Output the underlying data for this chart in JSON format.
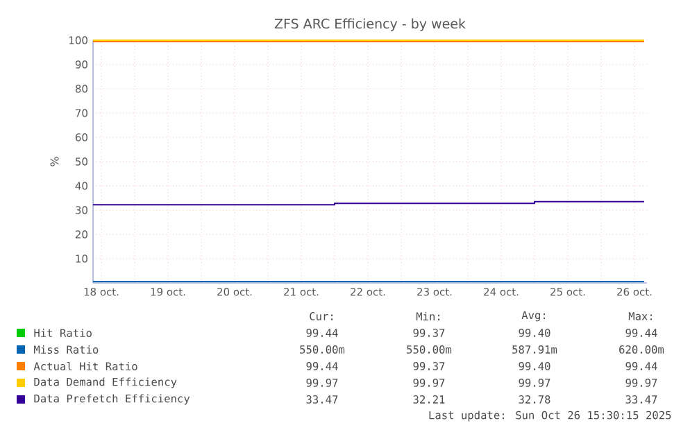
{
  "chart_data": {
    "type": "step",
    "title": "ZFS ARC Efficiency - by week",
    "ylabel": "%",
    "xlim": [
      "2025-10-18T09:00",
      "2025-10-26T16:30"
    ],
    "xticks": [
      {
        "value": "2025-10-18T12:00",
        "label": "18 oct."
      },
      {
        "value": "2025-10-19T00:00",
        "label": null
      },
      {
        "value": "2025-10-19T12:00",
        "label": "19 oct."
      },
      {
        "value": "2025-10-20T00:00",
        "label": null
      },
      {
        "value": "2025-10-20T12:00",
        "label": "20 oct."
      },
      {
        "value": "2025-10-21T00:00",
        "label": null
      },
      {
        "value": "2025-10-21T12:00",
        "label": "21 oct."
      },
      {
        "value": "2025-10-22T00:00",
        "label": null
      },
      {
        "value": "2025-10-22T12:00",
        "label": "22 oct."
      },
      {
        "value": "2025-10-23T00:00",
        "label": null
      },
      {
        "value": "2025-10-23T12:00",
        "label": "23 oct."
      },
      {
        "value": "2025-10-24T00:00",
        "label": null
      },
      {
        "value": "2025-10-24T12:00",
        "label": "24 oct."
      },
      {
        "value": "2025-10-25T00:00",
        "label": null
      },
      {
        "value": "2025-10-25T12:00",
        "label": "25 oct."
      },
      {
        "value": "2025-10-26T00:00",
        "label": null
      },
      {
        "value": "2025-10-26T12:00",
        "label": "26 oct."
      }
    ],
    "ylim": [
      0,
      100
    ],
    "yticks": [
      10,
      20,
      30,
      40,
      50,
      60,
      70,
      80,
      90,
      100
    ],
    "grid": true,
    "legend": "bottom",
    "series": [
      {
        "name": "Hit Ratio",
        "color": "#00cc00",
        "values": [
          null
        ]
      },
      {
        "name": "Miss Ratio",
        "color": "#0066b3",
        "x": [
          "2025-10-18T09:00",
          "2025-10-26T15:30"
        ],
        "values": [
          0.6,
          0.6
        ]
      },
      {
        "name": "Actual Hit Ratio",
        "color": "#ff8000",
        "x": [
          "2025-10-18T09:00",
          "2025-10-26T15:30"
        ],
        "values": [
          99.4,
          99.4
        ]
      },
      {
        "name": "Data Demand Efficiency",
        "color": "#ffcc00",
        "x": [
          "2025-10-18T09:00",
          "2025-10-26T15:30"
        ],
        "values": [
          100,
          100
        ]
      },
      {
        "name": "Data Prefetch Efficiency",
        "color": "#330099",
        "x": [
          "2025-10-18T09:00",
          "2025-10-22T00:00",
          "2025-10-25T00:00",
          "2025-10-26T15:30"
        ],
        "values": [
          32.2,
          32.8,
          33.5,
          33.5
        ]
      }
    ],
    "annotations": [
      "Cur:",
      "Min:",
      "Avg:",
      "Max:",
      "99.44",
      "99.37",
      "99.40",
      "99.44",
      "550.00m",
      "550.00m",
      "587.91m",
      "620.00m",
      "99.44",
      "99.37",
      "99.40",
      "99.44",
      "99.97",
      "99.97",
      "99.97",
      "99.97",
      "33.47",
      "32.21",
      "32.78",
      "33.47",
      "Last update: Sun Oct 26 15:30:15 2025"
    ]
  }
}
